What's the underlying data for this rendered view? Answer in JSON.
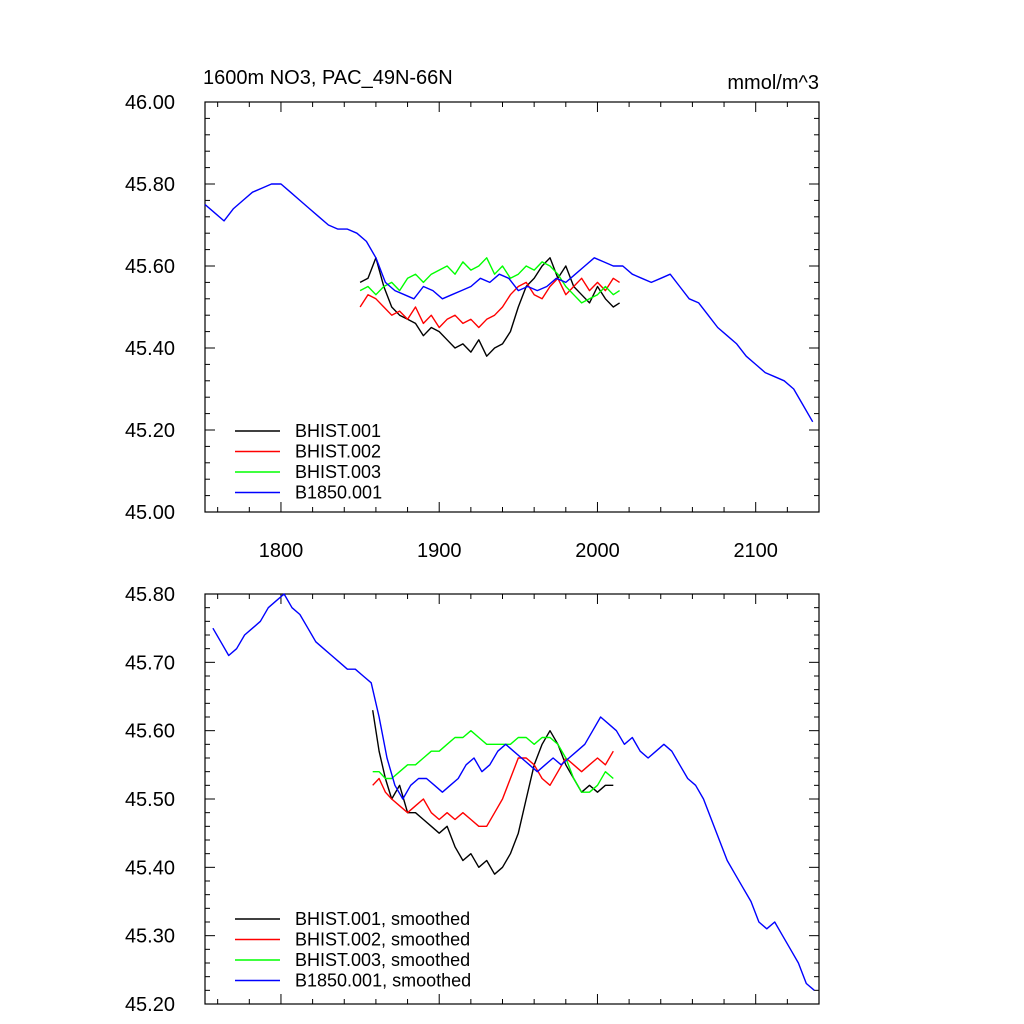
{
  "chart_data": [
    {
      "type": "line",
      "title": "1600m NO3, PAC_49N-66N",
      "units": "mmol/m^3",
      "xlim": [
        1752,
        2140
      ],
      "ylim": [
        45.0,
        46.0
      ],
      "x_ticks": [
        1800,
        1900,
        2000,
        2100
      ],
      "x_tick_labels": [
        "1800",
        "1900",
        "2000",
        "2100"
      ],
      "y_ticks": [
        45.0,
        45.2,
        45.4,
        45.6,
        45.8,
        46.0
      ],
      "y_tick_labels": [
        "45.00",
        "45.20",
        "45.40",
        "45.60",
        "45.80",
        "46.00"
      ],
      "legend_position": "bottom-left",
      "series": [
        {
          "name": "BHIST.001",
          "color": "#000000",
          "x": [
            1850,
            1855,
            1860,
            1865,
            1870,
            1875,
            1880,
            1885,
            1890,
            1895,
            1900,
            1905,
            1910,
            1915,
            1920,
            1925,
            1930,
            1935,
            1940,
            1945,
            1950,
            1955,
            1960,
            1965,
            1970,
            1975,
            1980,
            1985,
            1990,
            1995,
            2000,
            2005,
            2010,
            2014
          ],
          "y": [
            45.56,
            45.57,
            45.62,
            45.55,
            45.5,
            45.48,
            45.47,
            45.46,
            45.43,
            45.45,
            45.44,
            45.42,
            45.4,
            45.41,
            45.39,
            45.42,
            45.38,
            45.4,
            45.41,
            45.44,
            45.5,
            45.55,
            45.57,
            45.6,
            45.62,
            45.57,
            45.6,
            45.55,
            45.53,
            45.51,
            45.55,
            45.52,
            45.5,
            45.51
          ]
        },
        {
          "name": "BHIST.002",
          "color": "#ff0000",
          "x": [
            1850,
            1855,
            1860,
            1865,
            1870,
            1875,
            1880,
            1885,
            1890,
            1895,
            1900,
            1905,
            1910,
            1915,
            1920,
            1925,
            1930,
            1935,
            1940,
            1945,
            1950,
            1955,
            1960,
            1965,
            1970,
            1975,
            1980,
            1985,
            1990,
            1995,
            2000,
            2005,
            2010,
            2014
          ],
          "y": [
            45.5,
            45.53,
            45.52,
            45.5,
            45.48,
            45.49,
            45.47,
            45.5,
            45.46,
            45.48,
            45.45,
            45.47,
            45.48,
            45.46,
            45.47,
            45.45,
            45.47,
            45.48,
            45.5,
            45.53,
            45.55,
            45.56,
            45.53,
            45.52,
            45.55,
            45.57,
            45.53,
            45.55,
            45.57,
            45.54,
            45.56,
            45.54,
            45.57,
            45.56
          ]
        },
        {
          "name": "BHIST.003",
          "color": "#00ff00",
          "x": [
            1850,
            1855,
            1860,
            1865,
            1870,
            1875,
            1880,
            1885,
            1890,
            1895,
            1900,
            1905,
            1910,
            1915,
            1920,
            1925,
            1930,
            1935,
            1940,
            1945,
            1950,
            1955,
            1960,
            1965,
            1970,
            1975,
            1980,
            1985,
            1990,
            1995,
            2000,
            2005,
            2010,
            2014
          ],
          "y": [
            45.54,
            45.55,
            45.53,
            45.55,
            45.56,
            45.54,
            45.57,
            45.58,
            45.56,
            45.58,
            45.59,
            45.6,
            45.58,
            45.61,
            45.59,
            45.6,
            45.62,
            45.58,
            45.6,
            45.57,
            45.58,
            45.6,
            45.59,
            45.61,
            45.6,
            45.58,
            45.55,
            45.53,
            45.51,
            45.52,
            45.53,
            45.55,
            45.53,
            45.54
          ]
        },
        {
          "name": "B1850.001",
          "color": "#0000ff",
          "x": [
            1752,
            1758,
            1764,
            1770,
            1776,
            1782,
            1788,
            1794,
            1800,
            1806,
            1812,
            1818,
            1824,
            1830,
            1836,
            1842,
            1848,
            1854,
            1860,
            1866,
            1872,
            1878,
            1884,
            1890,
            1896,
            1902,
            1908,
            1914,
            1920,
            1926,
            1932,
            1938,
            1944,
            1950,
            1956,
            1962,
            1968,
            1974,
            1980,
            1986,
            1992,
            1998,
            2004,
            2010,
            2016,
            2022,
            2028,
            2034,
            2040,
            2046,
            2052,
            2058,
            2064,
            2070,
            2076,
            2082,
            2088,
            2094,
            2100,
            2106,
            2112,
            2118,
            2124,
            2130,
            2136
          ],
          "y": [
            45.75,
            45.73,
            45.71,
            45.74,
            45.76,
            45.78,
            45.79,
            45.8,
            45.8,
            45.78,
            45.76,
            45.74,
            45.72,
            45.7,
            45.69,
            45.69,
            45.68,
            45.66,
            45.62,
            45.56,
            45.54,
            45.53,
            45.52,
            45.55,
            45.54,
            45.52,
            45.53,
            45.54,
            45.55,
            45.57,
            45.56,
            45.58,
            45.57,
            45.54,
            45.55,
            45.54,
            45.55,
            45.57,
            45.56,
            45.58,
            45.6,
            45.62,
            45.61,
            45.6,
            45.6,
            45.58,
            45.57,
            45.56,
            45.57,
            45.58,
            45.55,
            45.52,
            45.51,
            45.48,
            45.45,
            45.43,
            45.41,
            45.38,
            45.36,
            45.34,
            45.33,
            45.32,
            45.3,
            45.26,
            45.22
          ]
        }
      ]
    },
    {
      "type": "line",
      "xlim": [
        1752,
        2140
      ],
      "ylim": [
        45.2,
        45.8
      ],
      "x_ticks": [
        1800,
        1900,
        2000,
        2100
      ],
      "y_ticks": [
        45.2,
        45.3,
        45.4,
        45.5,
        45.6,
        45.7,
        45.8
      ],
      "y_tick_labels": [
        "45.20",
        "45.30",
        "45.40",
        "45.50",
        "45.60",
        "45.70",
        "45.80"
      ],
      "legend_position": "bottom-left",
      "series": [
        {
          "name": "BHIST.001, smoothed",
          "color": "#000000",
          "x": [
            1858,
            1862,
            1866,
            1870,
            1875,
            1880,
            1885,
            1890,
            1895,
            1900,
            1905,
            1910,
            1915,
            1920,
            1925,
            1930,
            1935,
            1940,
            1945,
            1950,
            1955,
            1960,
            1965,
            1970,
            1975,
            1980,
            1985,
            1990,
            1995,
            2000,
            2005,
            2010
          ],
          "y": [
            45.63,
            45.57,
            45.53,
            45.5,
            45.52,
            45.48,
            45.48,
            45.47,
            45.46,
            45.45,
            45.46,
            45.43,
            45.41,
            45.42,
            45.4,
            45.41,
            45.39,
            45.4,
            45.42,
            45.45,
            45.5,
            45.55,
            45.58,
            45.6,
            45.58,
            45.55,
            45.53,
            45.51,
            45.52,
            45.51,
            45.52,
            45.52
          ]
        },
        {
          "name": "BHIST.002, smoothed",
          "color": "#ff0000",
          "x": [
            1858,
            1862,
            1866,
            1870,
            1875,
            1880,
            1885,
            1890,
            1895,
            1900,
            1905,
            1910,
            1915,
            1920,
            1925,
            1930,
            1935,
            1940,
            1945,
            1950,
            1955,
            1960,
            1965,
            1970,
            1975,
            1980,
            1985,
            1990,
            1995,
            2000,
            2005,
            2010
          ],
          "y": [
            45.52,
            45.53,
            45.51,
            45.5,
            45.49,
            45.48,
            45.49,
            45.5,
            45.48,
            45.47,
            45.48,
            45.47,
            45.48,
            45.47,
            45.46,
            45.46,
            45.48,
            45.5,
            45.53,
            45.56,
            45.56,
            45.55,
            45.53,
            45.52,
            45.54,
            45.56,
            45.55,
            45.54,
            45.55,
            45.56,
            45.55,
            45.57
          ]
        },
        {
          "name": "BHIST.003, smoothed",
          "color": "#00ff00",
          "x": [
            1858,
            1862,
            1866,
            1870,
            1875,
            1880,
            1885,
            1890,
            1895,
            1900,
            1905,
            1910,
            1915,
            1920,
            1925,
            1930,
            1935,
            1940,
            1945,
            1950,
            1955,
            1960,
            1965,
            1970,
            1975,
            1980,
            1985,
            1990,
            1995,
            2000,
            2005,
            2010
          ],
          "y": [
            45.54,
            45.54,
            45.53,
            45.53,
            45.54,
            45.55,
            45.55,
            45.56,
            45.57,
            45.57,
            45.58,
            45.59,
            45.59,
            45.6,
            45.59,
            45.58,
            45.58,
            45.58,
            45.58,
            45.59,
            45.59,
            45.58,
            45.59,
            45.59,
            45.58,
            45.56,
            45.53,
            45.51,
            45.51,
            45.52,
            45.54,
            45.53
          ]
        },
        {
          "name": "B1850.001, smoothed",
          "color": "#0000ff",
          "x": [
            1757,
            1762,
            1767,
            1772,
            1777,
            1782,
            1787,
            1792,
            1797,
            1802,
            1807,
            1812,
            1817,
            1822,
            1827,
            1832,
            1837,
            1842,
            1847,
            1852,
            1857,
            1862,
            1867,
            1872,
            1877,
            1882,
            1887,
            1892,
            1897,
            1902,
            1907,
            1912,
            1917,
            1922,
            1927,
            1932,
            1937,
            1942,
            1947,
            1952,
            1957,
            1962,
            1967,
            1972,
            1977,
            1982,
            1987,
            1992,
            1997,
            2002,
            2007,
            2012,
            2017,
            2022,
            2027,
            2032,
            2037,
            2042,
            2047,
            2052,
            2057,
            2062,
            2067,
            2072,
            2077,
            2082,
            2087,
            2092,
            2097,
            2102,
            2107,
            2112,
            2117,
            2122,
            2127,
            2132,
            2137
          ],
          "y": [
            45.75,
            45.73,
            45.71,
            45.72,
            45.74,
            45.75,
            45.76,
            45.78,
            45.79,
            45.8,
            45.78,
            45.77,
            45.75,
            45.73,
            45.72,
            45.71,
            45.7,
            45.69,
            45.69,
            45.68,
            45.67,
            45.62,
            45.56,
            45.52,
            45.5,
            45.52,
            45.53,
            45.53,
            45.52,
            45.51,
            45.52,
            45.53,
            45.55,
            45.56,
            45.54,
            45.55,
            45.57,
            45.58,
            45.57,
            45.56,
            45.55,
            45.54,
            45.55,
            45.56,
            45.55,
            45.56,
            45.57,
            45.58,
            45.6,
            45.62,
            45.61,
            45.6,
            45.58,
            45.59,
            45.57,
            45.56,
            45.57,
            45.58,
            45.57,
            45.55,
            45.53,
            45.52,
            45.5,
            45.47,
            45.44,
            45.41,
            45.39,
            45.37,
            45.35,
            45.32,
            45.31,
            45.32,
            45.3,
            45.28,
            45.26,
            45.23,
            45.22
          ]
        }
      ]
    }
  ]
}
